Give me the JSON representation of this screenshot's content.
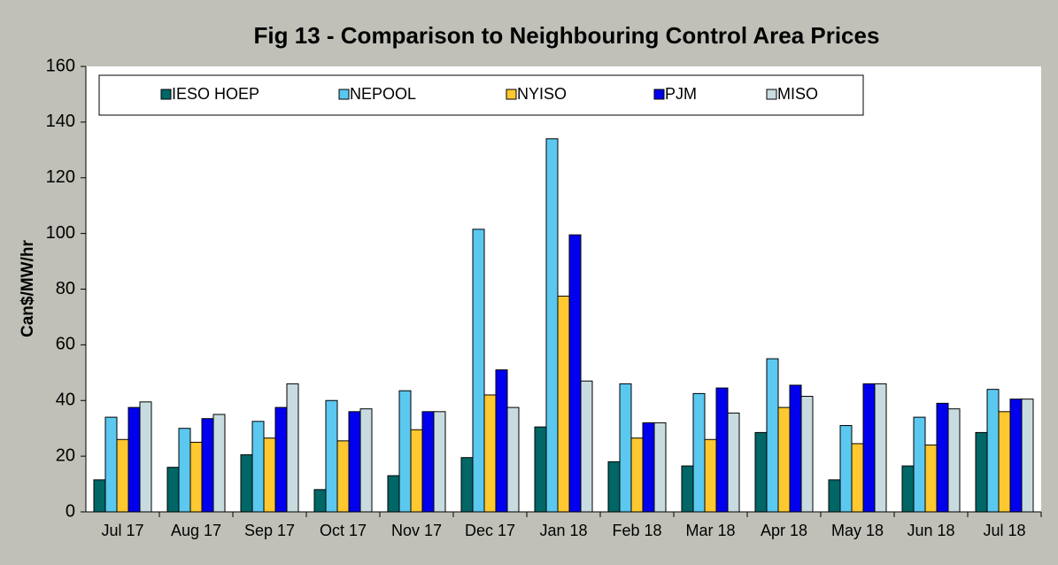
{
  "chart_data": {
    "type": "bar",
    "title": "Fig  13 - Comparison to Neighbouring Control Area Prices",
    "y_label": "Can$/MW/hr",
    "categories": [
      "Jul 17",
      "Aug 17",
      "Sep 17",
      "Oct 17",
      "Nov 17",
      "Dec 17",
      "Jan 18",
      "Feb 18",
      "Mar 18",
      "Apr 18",
      "May 18",
      "Jun 18",
      "Jul 18"
    ],
    "series": [
      {
        "name": "IESO HOEP",
        "color": "#006666",
        "values": [
          11.5,
          16,
          20.5,
          8,
          13,
          19.5,
          30.5,
          18,
          16.5,
          28.5,
          11.5,
          16.5,
          28.5
        ]
      },
      {
        "name": "NEPOOL",
        "color": "#5bc8f0",
        "values": [
          34,
          30,
          32.5,
          40,
          43.5,
          101.5,
          134,
          46,
          42.5,
          55,
          31,
          34,
          44
        ]
      },
      {
        "name": "NYISO",
        "color": "#ffc830",
        "values": [
          26,
          25,
          26.5,
          25.5,
          29.5,
          42,
          77.5,
          26.5,
          26,
          37.5,
          24.5,
          24,
          36
        ]
      },
      {
        "name": "PJM",
        "color": "#0000ee",
        "values": [
          37.5,
          33.5,
          37.5,
          36,
          36,
          51,
          99.5,
          32,
          44.5,
          45.5,
          46,
          39,
          40.5
        ]
      },
      {
        "name": "MISO",
        "color": "#c8dce0",
        "values": [
          39.5,
          35,
          46,
          37,
          36,
          37.5,
          47,
          32,
          35.5,
          41.5,
          46,
          37,
          40.5
        ]
      }
    ],
    "ylim": [
      0,
      160
    ],
    "yticks": [
      0,
      20,
      40,
      60,
      80,
      100,
      120,
      140,
      160
    ],
    "grid": false
  }
}
